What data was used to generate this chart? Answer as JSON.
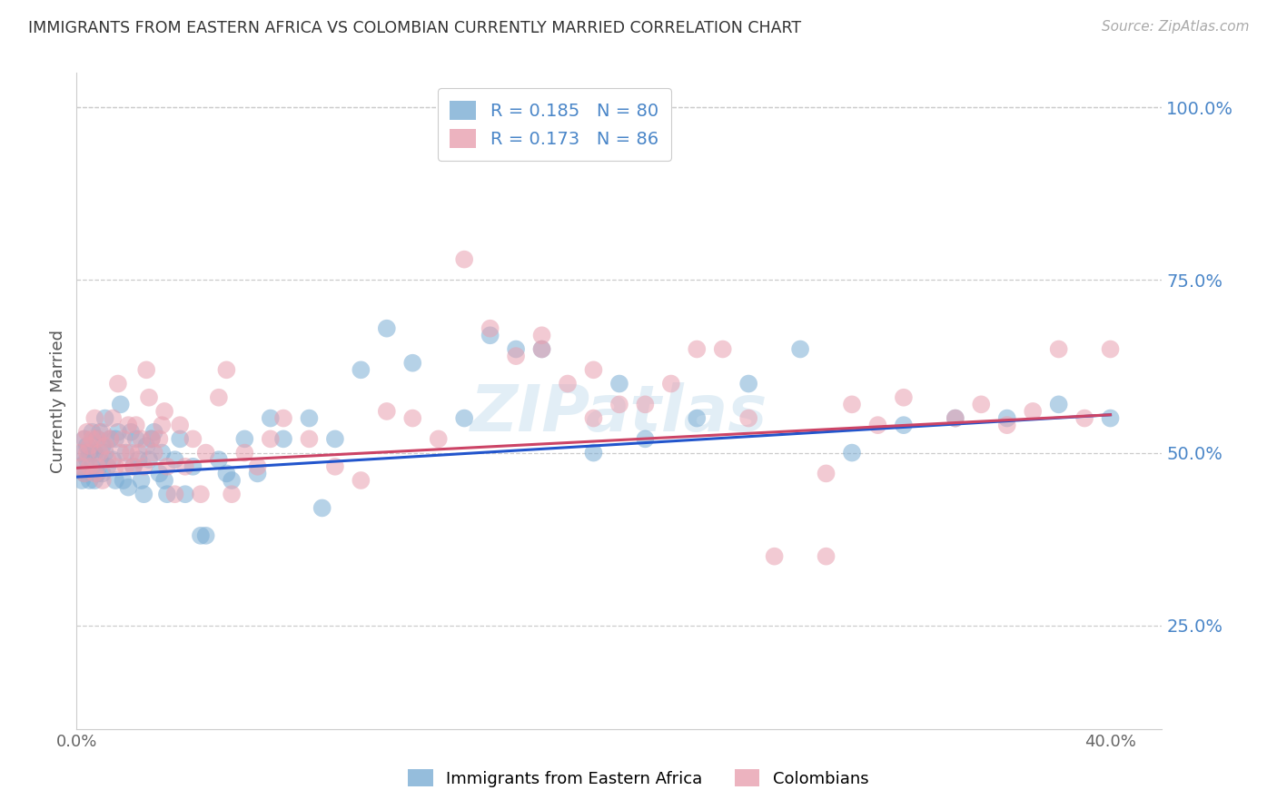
{
  "title": "IMMIGRANTS FROM EASTERN AFRICA VS COLOMBIAN CURRENTLY MARRIED CORRELATION CHART",
  "source": "Source: ZipAtlas.com",
  "ylabel": "Currently Married",
  "xlim": [
    0.0,
    0.42
  ],
  "ylim": [
    0.1,
    1.05
  ],
  "blue_R": 0.185,
  "blue_N": 80,
  "pink_R": 0.173,
  "pink_N": 86,
  "legend_label_blue": "Immigrants from Eastern Africa",
  "legend_label_pink": "Colombians",
  "blue_color": "#7badd4",
  "pink_color": "#e8a0b0",
  "line_blue": "#2255cc",
  "line_pink": "#cc4466",
  "watermark": "ZIPatlas",
  "background_color": "#ffffff",
  "blue_x": [
    0.001,
    0.002,
    0.002,
    0.003,
    0.003,
    0.004,
    0.004,
    0.005,
    0.005,
    0.006,
    0.006,
    0.007,
    0.007,
    0.008,
    0.008,
    0.009,
    0.009,
    0.01,
    0.01,
    0.011,
    0.011,
    0.012,
    0.013,
    0.014,
    0.015,
    0.015,
    0.016,
    0.017,
    0.018,
    0.019,
    0.02,
    0.021,
    0.022,
    0.023,
    0.024,
    0.025,
    0.026,
    0.027,
    0.028,
    0.029,
    0.03,
    0.032,
    0.033,
    0.034,
    0.035,
    0.038,
    0.04,
    0.042,
    0.045,
    0.048,
    0.05,
    0.055,
    0.058,
    0.06,
    0.065,
    0.07,
    0.075,
    0.08,
    0.09,
    0.095,
    0.1,
    0.11,
    0.12,
    0.13,
    0.15,
    0.16,
    0.17,
    0.18,
    0.2,
    0.21,
    0.22,
    0.24,
    0.26,
    0.28,
    0.3,
    0.32,
    0.34,
    0.36,
    0.38,
    0.4
  ],
  "blue_y": [
    0.48,
    0.5,
    0.46,
    0.52,
    0.47,
    0.49,
    0.51,
    0.5,
    0.46,
    0.53,
    0.48,
    0.5,
    0.46,
    0.52,
    0.47,
    0.53,
    0.49,
    0.51,
    0.47,
    0.5,
    0.55,
    0.48,
    0.52,
    0.49,
    0.46,
    0.52,
    0.53,
    0.57,
    0.46,
    0.5,
    0.45,
    0.53,
    0.48,
    0.52,
    0.49,
    0.46,
    0.44,
    0.51,
    0.49,
    0.52,
    0.53,
    0.47,
    0.5,
    0.46,
    0.44,
    0.49,
    0.52,
    0.44,
    0.48,
    0.38,
    0.38,
    0.49,
    0.47,
    0.46,
    0.52,
    0.47,
    0.55,
    0.52,
    0.55,
    0.42,
    0.52,
    0.62,
    0.68,
    0.63,
    0.55,
    0.67,
    0.65,
    0.65,
    0.5,
    0.6,
    0.52,
    0.55,
    0.6,
    0.65,
    0.5,
    0.54,
    0.55,
    0.55,
    0.57,
    0.55
  ],
  "pink_x": [
    0.001,
    0.002,
    0.003,
    0.003,
    0.004,
    0.004,
    0.005,
    0.005,
    0.006,
    0.007,
    0.007,
    0.008,
    0.008,
    0.009,
    0.01,
    0.01,
    0.011,
    0.012,
    0.013,
    0.014,
    0.015,
    0.016,
    0.017,
    0.018,
    0.019,
    0.02,
    0.021,
    0.022,
    0.023,
    0.024,
    0.025,
    0.026,
    0.027,
    0.028,
    0.029,
    0.03,
    0.032,
    0.033,
    0.034,
    0.035,
    0.038,
    0.04,
    0.042,
    0.045,
    0.048,
    0.05,
    0.055,
    0.058,
    0.06,
    0.065,
    0.07,
    0.075,
    0.08,
    0.09,
    0.1,
    0.11,
    0.12,
    0.13,
    0.14,
    0.15,
    0.16,
    0.17,
    0.18,
    0.19,
    0.2,
    0.21,
    0.22,
    0.23,
    0.25,
    0.27,
    0.29,
    0.3,
    0.32,
    0.34,
    0.36,
    0.38,
    0.4,
    0.29,
    0.31,
    0.35,
    0.37,
    0.39,
    0.24,
    0.26,
    0.18,
    0.2
  ],
  "pink_y": [
    0.5,
    0.48,
    0.52,
    0.47,
    0.5,
    0.53,
    0.51,
    0.48,
    0.52,
    0.47,
    0.55,
    0.48,
    0.52,
    0.5,
    0.53,
    0.46,
    0.51,
    0.49,
    0.52,
    0.55,
    0.48,
    0.6,
    0.5,
    0.52,
    0.48,
    0.54,
    0.5,
    0.48,
    0.54,
    0.5,
    0.52,
    0.48,
    0.62,
    0.58,
    0.52,
    0.5,
    0.52,
    0.54,
    0.56,
    0.48,
    0.44,
    0.54,
    0.48,
    0.52,
    0.44,
    0.5,
    0.58,
    0.62,
    0.44,
    0.5,
    0.48,
    0.52,
    0.55,
    0.52,
    0.48,
    0.46,
    0.56,
    0.55,
    0.52,
    0.78,
    0.68,
    0.64,
    0.65,
    0.6,
    0.55,
    0.57,
    0.57,
    0.6,
    0.65,
    0.35,
    0.35,
    0.57,
    0.58,
    0.55,
    0.54,
    0.65,
    0.65,
    0.47,
    0.54,
    0.57,
    0.56,
    0.55,
    0.65,
    0.55,
    0.67,
    0.62
  ]
}
